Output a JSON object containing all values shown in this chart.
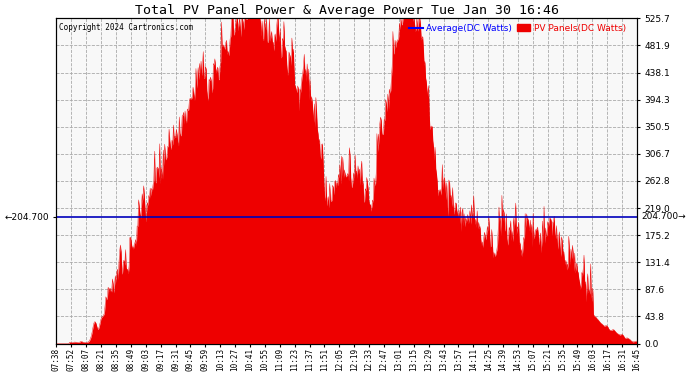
{
  "title": "Total PV Panel Power & Average Power Tue Jan 30 16:46",
  "copyright": "Copyright 2024 Cartronics.com",
  "legend_avg": "Average(DC Watts)",
  "legend_pv": "PV Panels(DC Watts)",
  "y_right_labels": [
    525.7,
    481.9,
    438.1,
    394.3,
    350.5,
    306.7,
    262.8,
    219.0,
    175.2,
    131.4,
    87.6,
    43.8,
    0.0
  ],
  "y_left_label": "204.700",
  "avg_line_value": 204.7,
  "y_max": 525.7,
  "y_min": 0.0,
  "background_color": "#ffffff",
  "plot_bg_color": "#f0f0f0",
  "grid_color": "#aaaaaa",
  "fill_color": "#ee0000",
  "avg_line_color": "#0000bb",
  "title_color": "#000000",
  "copyright_color": "#000000",
  "avg_legend_color": "#0000ff",
  "pv_legend_color": "#ee0000",
  "x_tick_labels": [
    "07:38",
    "07:52",
    "08:07",
    "08:21",
    "08:35",
    "08:49",
    "09:03",
    "09:17",
    "09:31",
    "09:45",
    "09:59",
    "10:13",
    "10:27",
    "10:41",
    "10:55",
    "11:09",
    "11:23",
    "11:37",
    "11:51",
    "12:05",
    "12:19",
    "12:33",
    "12:47",
    "13:01",
    "13:15",
    "13:29",
    "13:43",
    "13:57",
    "14:11",
    "14:25",
    "14:39",
    "14:53",
    "15:07",
    "15:21",
    "15:35",
    "15:49",
    "16:03",
    "16:17",
    "16:31",
    "16:45"
  ],
  "n_points": 800,
  "seed": 42
}
